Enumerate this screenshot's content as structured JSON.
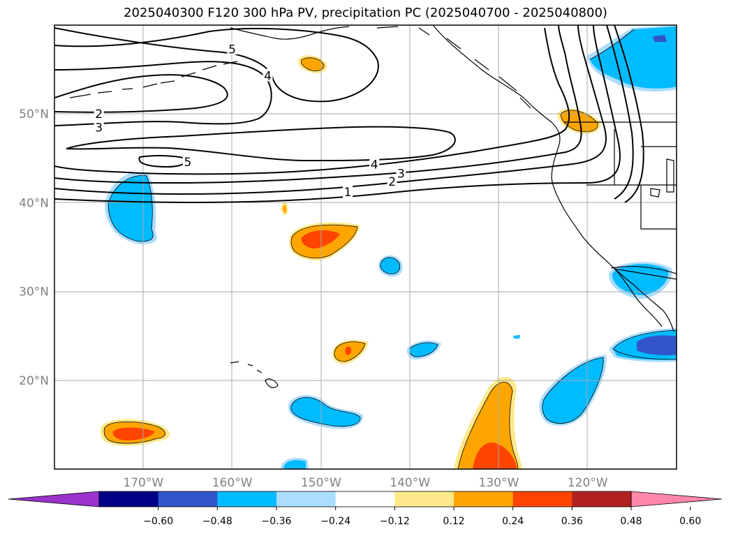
{
  "title": "2025040300 F120 300 hPa PV, precipitation PC (2025040700 - 2025040800)",
  "map": {
    "lon_range": [
      -180,
      -110
    ],
    "lat_range": [
      10,
      60
    ],
    "lon_labels": [
      {
        "lon": -170,
        "text": "170°W"
      },
      {
        "lon": -160,
        "text": "160°W"
      },
      {
        "lon": -150,
        "text": "150°W"
      },
      {
        "lon": -140,
        "text": "140°W"
      },
      {
        "lon": -130,
        "text": "130°W"
      },
      {
        "lon": -120,
        "text": "120°W"
      }
    ],
    "lat_labels": [
      {
        "lat": 50,
        "text": "50°N"
      },
      {
        "lat": 40,
        "text": "40°N"
      },
      {
        "lat": 30,
        "text": "30°N"
      },
      {
        "lat": 20,
        "text": "20°N"
      }
    ],
    "contour_labels": [
      {
        "text": "5",
        "lon": -160,
        "lat": 57.3
      },
      {
        "text": "4",
        "lon": -156,
        "lat": 54.3
      },
      {
        "text": "2",
        "lon": -175,
        "lat": 50.0
      },
      {
        "text": "3",
        "lon": -175,
        "lat": 48.5
      },
      {
        "text": "5",
        "lon": -165,
        "lat": 44.6
      },
      {
        "text": "4",
        "lon": -144,
        "lat": 44.3
      },
      {
        "text": "3",
        "lon": -141,
        "lat": 43.3
      },
      {
        "text": "2",
        "lon": -142,
        "lat": 42.4
      },
      {
        "text": "1",
        "lon": -147,
        "lat": 41.2
      }
    ]
  },
  "colorbar": {
    "colors": [
      "#9933cc",
      "#000088",
      "#3355cc",
      "#00bbff",
      "#aaddff",
      "#ffffff",
      "#ffe88a",
      "#ffa500",
      "#ff4400",
      "#b22222",
      "#ff88aa"
    ],
    "ticks": [
      "−0.60",
      "−0.48",
      "−0.36",
      "−0.24",
      "−0.12",
      "0.12",
      "0.24",
      "0.36",
      "0.48",
      "0.60"
    ]
  }
}
